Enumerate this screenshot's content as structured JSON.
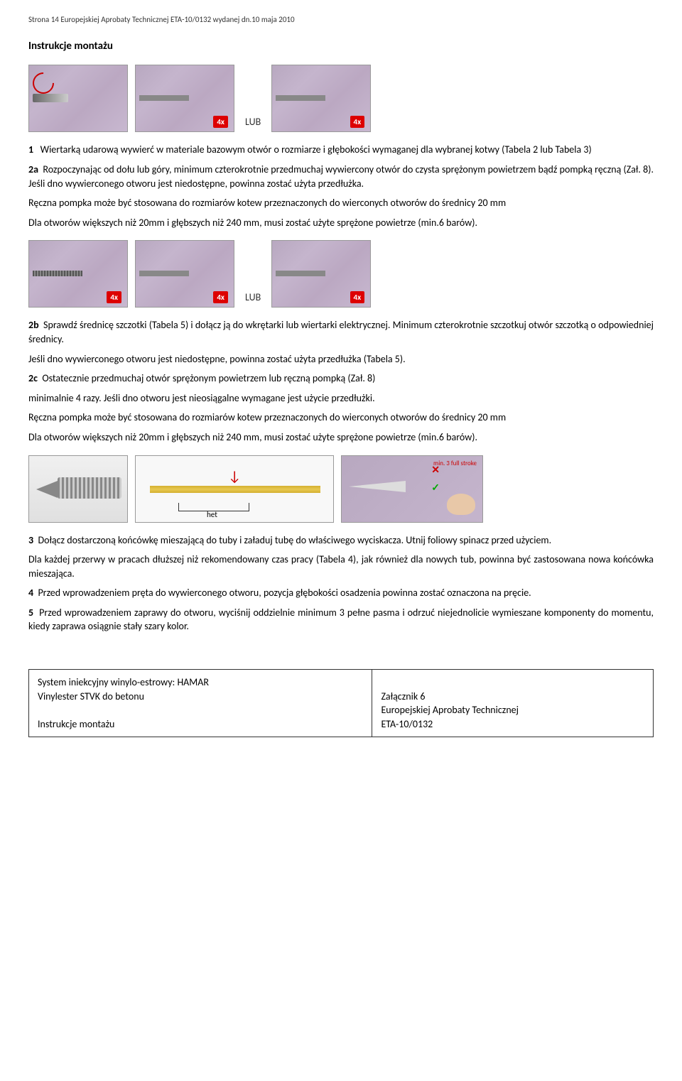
{
  "header": "Strona 14 Europejskiej Aprobaty Technicznej ETA-10/0132 wydanej dn.10 maja 2010",
  "title": "Instrukcje montażu",
  "lub": "LUB",
  "badge4x": "4x",
  "badge4x2": "4x",
  "step1": {
    "label": "1",
    "text": "Wiertarką udarową wywierć w materiale bazowym otwór o rozmiarze i głębokości wymaganej dla wybranej kotwy (Tabela 2 lub Tabela 3)"
  },
  "step2a": {
    "label": "2a",
    "text": "Rozpoczynając od dołu lub góry, minimum czterokrotnie przedmuchaj wywiercony otwór do czysta sprężonym powietrzem bądź pompką ręczną (Zał. 8). Jeśli dno wywierconego otworu jest niedostępne, powinna zostać użyta przedłużka."
  },
  "note1": "Ręczna pompka może być stosowana do rozmiarów kotew przeznaczonych do wierconych otworów do średnicy 20 mm",
  "note2": "Dla otworów większych niż 20mm i głębszych niż 240 mm, musi zostać użyte sprężone powietrze (min.6 barów).",
  "step2b": {
    "label": "2b",
    "text": "Sprawdź średnicę szczotki (Tabela 5) i dołącz ją do wkrętarki lub wiertarki elektrycznej. Minimum czterokrotnie szczotkuj otwór szczotką o odpowiedniej średnicy."
  },
  "note3": "Jeśli dno wywierconego otworu jest niedostępne, powinna zostać użyta przedłużka (Tabela 5).",
  "step2c": {
    "label": "2c",
    "text": "Ostatecznie przedmuchaj otwór sprężonym powietrzem lub ręczną pompką (Zał. 8)"
  },
  "note4": "minimalnie 4 razy. Jeśli dno otworu  jest nieosiągalne wymagane jest użycie przedłużki.",
  "note5": "Ręczna pompka może być stosowana do rozmiarów kotew przeznaczonych do wierconych otworów do średnicy 20 mm",
  "note6": "Dla otworów większych niż 20mm i głębszych niż 240 mm, musi zostać użyte sprężone powietrze (min.6 barów).",
  "tube_het": "het",
  "nozzle_note": "min. 3 full stroke",
  "step3": {
    "label": "3",
    "text": "Dołącz dostarczoną końcówkę mieszającą do tuby i załaduj tubę do właściwego wyciskacza. Utnij foliowy spinacz przed użyciem."
  },
  "step3note": "Dla każdej przerwy w pracach dłuższej niż rekomendowany czas pracy (Tabela 4), jak również dla nowych tub, powinna być zastosowana nowa końcówka mieszająca.",
  "step4": {
    "label": "4",
    "text": "Przed wprowadzeniem pręta do wywierconego otworu, pozycja głębokości osadzenia powinna zostać oznaczona na pręcie."
  },
  "step5": {
    "label": "5",
    "text": "Przed wprowadzeniem zaprawy do otworu, wyciśnij oddzielnie minimum 3 pełne pasma i odrzuć niejednolicie wymieszane komponenty do momentu, kiedy zaprawa osiągnie stały szary kolor."
  },
  "footer": {
    "line1": "System iniekcyjny winylo-estrowy: HAMAR",
    "line2": "Vinylester STVK do betonu",
    "line3": "Instrukcje montażu",
    "right1": "Załącznik  6",
    "right2": "Europejskiej Aprobaty Technicznej",
    "right3": "ETA-10/0132"
  }
}
